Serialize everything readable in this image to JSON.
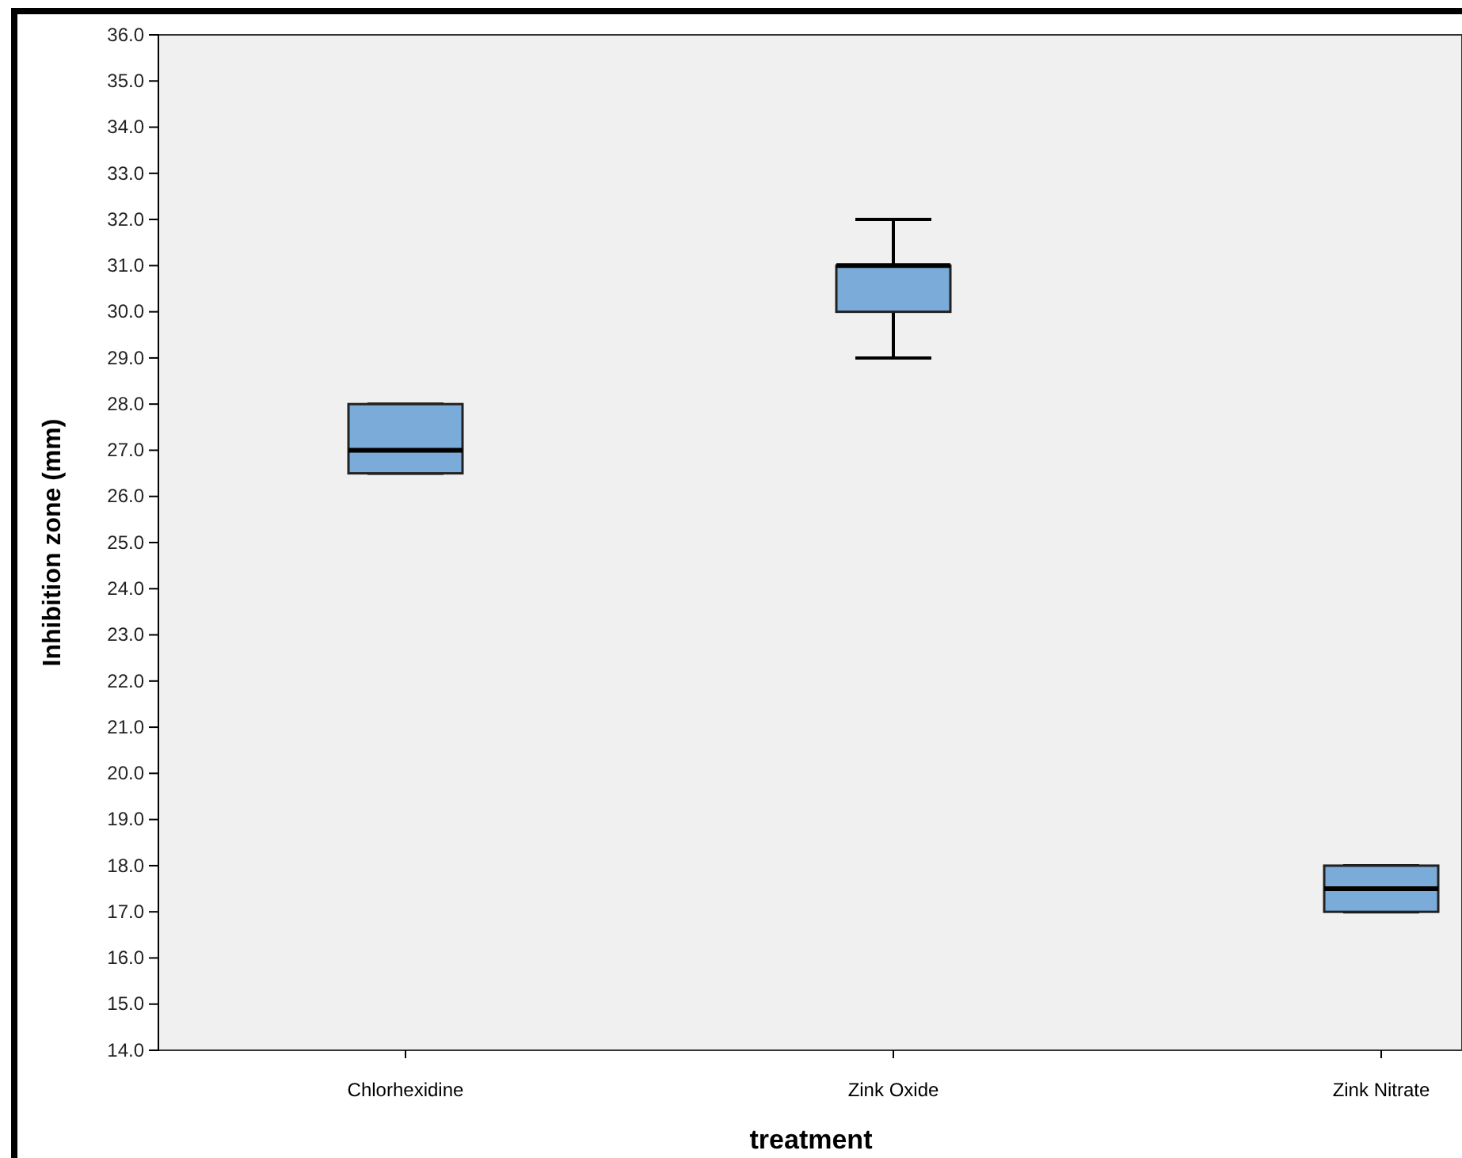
{
  "chart_data": {
    "type": "box",
    "xlabel": "treatment",
    "ylabel": "Inhibition zone (mm)",
    "categories": [
      "Chlorhexidine",
      "Zink Oxide",
      "Zink Nitrate"
    ],
    "color": "#7aabd9",
    "boxes": [
      {
        "low": 26.5,
        "q1": 26.5,
        "median": 27,
        "q3": 28,
        "high": 28
      },
      {
        "low": 29,
        "q1": 30,
        "median": 31,
        "q3": 31,
        "high": 32
      },
      {
        "low": 17,
        "q1": 17,
        "median": 17.5,
        "q3": 18,
        "high": 18
      }
    ],
    "ylim": [
      14,
      36
    ],
    "yticks": [
      {
        "value": 14,
        "label": "14.0"
      },
      {
        "value": 15,
        "label": "15.0"
      },
      {
        "value": 16,
        "label": "16.0"
      },
      {
        "value": 17,
        "label": "17.0"
      },
      {
        "value": 18,
        "label": "18.0"
      },
      {
        "value": 19,
        "label": "19.0"
      },
      {
        "value": 20,
        "label": "20.0"
      },
      {
        "value": 21,
        "label": "21.0"
      },
      {
        "value": 22,
        "label": "22.0"
      },
      {
        "value": 23,
        "label": "23.0"
      },
      {
        "value": 24,
        "label": "24.0"
      },
      {
        "value": 25,
        "label": "25.0"
      },
      {
        "value": 26,
        "label": "26.0"
      },
      {
        "value": 27,
        "label": "27.0"
      },
      {
        "value": 28,
        "label": "28.0"
      },
      {
        "value": 29,
        "label": "29.0"
      },
      {
        "value": 30,
        "label": "30.0"
      },
      {
        "value": 31,
        "label": "31.0"
      },
      {
        "value": 32,
        "label": "32.0"
      },
      {
        "value": 33,
        "label": "33.0"
      },
      {
        "value": 34,
        "label": "34.0"
      },
      {
        "value": 35,
        "label": "35.0"
      },
      {
        "value": 36,
        "label": "36.0"
      }
    ],
    "grid": false
  }
}
